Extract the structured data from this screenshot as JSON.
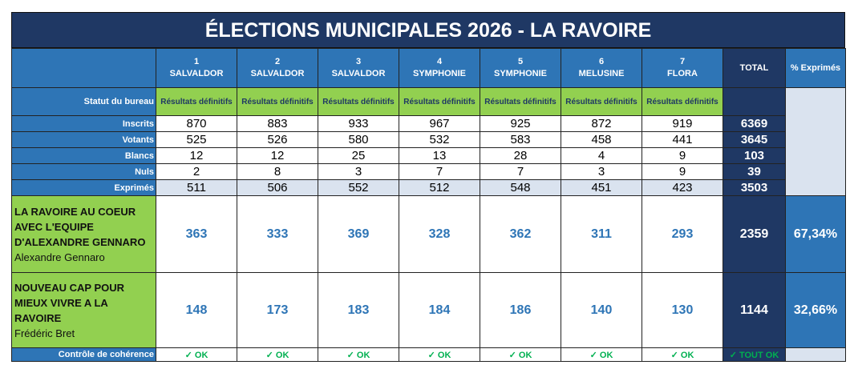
{
  "title": "ÉLECTIONS MUNICIPALES 2026 - LA RAVOIRE",
  "bureaus": [
    {
      "num": "1",
      "name": "SALVALDOR"
    },
    {
      "num": "2",
      "name": "SALVALDOR"
    },
    {
      "num": "3",
      "name": "SALVALDOR"
    },
    {
      "num": "4",
      "name": "SYMPHONIE"
    },
    {
      "num": "5",
      "name": "SYMPHONIE"
    },
    {
      "num": "6",
      "name": "MELUSINE"
    },
    {
      "num": "7",
      "name": "FLORA"
    }
  ],
  "total_header": "TOTAL",
  "pct_header": "% Exprimés",
  "status_label": "Statut du bureau",
  "status_value": "Résultats définitifs",
  "stats": [
    {
      "label": "Inscrits",
      "values": [
        "870",
        "883",
        "933",
        "967",
        "925",
        "872",
        "919"
      ],
      "total": "6369"
    },
    {
      "label": "Votants",
      "values": [
        "525",
        "526",
        "580",
        "532",
        "583",
        "458",
        "441"
      ],
      "total": "3645"
    },
    {
      "label": "Blancs",
      "values": [
        "12",
        "12",
        "25",
        "13",
        "28",
        "4",
        "9"
      ],
      "total": "103"
    },
    {
      "label": "Nuls",
      "values": [
        "2",
        "8",
        "3",
        "7",
        "7",
        "3",
        "9"
      ],
      "total": "39"
    },
    {
      "label": "Exprimés",
      "values": [
        "511",
        "506",
        "552",
        "512",
        "548",
        "451",
        "423"
      ],
      "total": "3503"
    }
  ],
  "lists": [
    {
      "name": "LA RAVOIRE AU COEUR AVEC L'EQUIPE D'ALEXANDRE GENNARO",
      "head": "Alexandre Gennaro",
      "values": [
        "363",
        "333",
        "369",
        "328",
        "362",
        "311",
        "293"
      ],
      "total": "2359",
      "pct": "67,34%"
    },
    {
      "name": "NOUVEAU CAP POUR MIEUX VIVRE A LA RAVOIRE",
      "head": "Frédéric Bret",
      "values": [
        "148",
        "173",
        "183",
        "184",
        "186",
        "140",
        "130"
      ],
      "total": "1144",
      "pct": "32,66%"
    }
  ],
  "control": {
    "label": "Contrôle de cohérence",
    "ok": "✓ OK",
    "total_ok": "✓ TOUT OK"
  }
}
